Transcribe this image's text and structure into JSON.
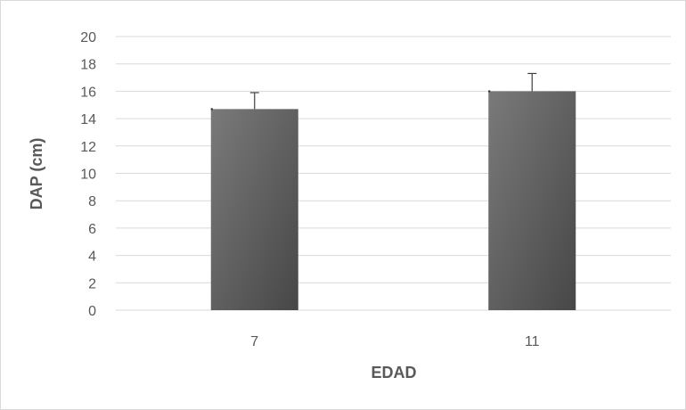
{
  "chart_data": {
    "type": "bar",
    "categories": [
      "7",
      "11"
    ],
    "values": [
      14.7,
      16.0
    ],
    "error_plus": [
      1.2,
      1.3
    ],
    "xlabel": "EDAD",
    "ylabel": "DAP (cm)",
    "ylim": [
      0,
      20
    ],
    "yticks": [
      0,
      2,
      4,
      6,
      8,
      10,
      12,
      14,
      16,
      18,
      20
    ],
    "grid": true,
    "legend": "none",
    "colors": {
      "bar_light": "#7a7a7a",
      "bar_dark": "#474747",
      "grid": "#d9d9d9",
      "error_bar": "#404040",
      "text": "#595959"
    }
  }
}
